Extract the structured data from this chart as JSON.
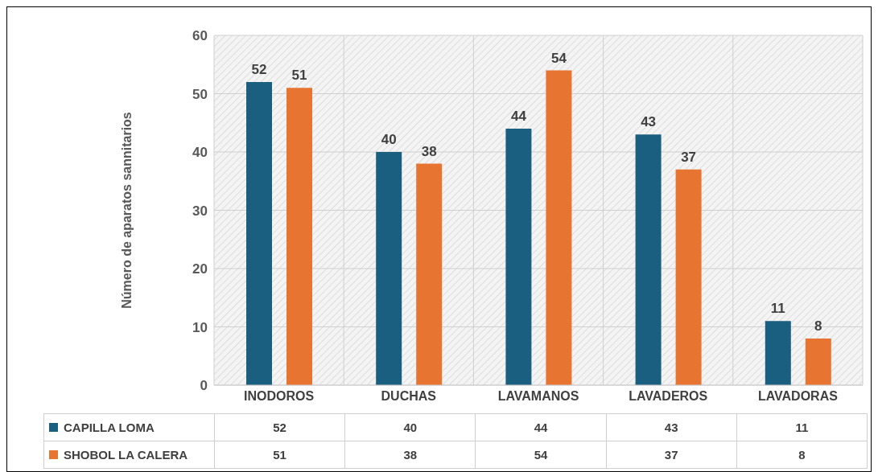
{
  "chart_data": {
    "type": "bar",
    "ylabel": "Número de aparatos sannitarios",
    "categories": [
      "INODOROS",
      "DUCHAS",
      "LAVAMANOS",
      "LAVADEROS",
      "LAVADORAS"
    ],
    "series": [
      {
        "name": "CAPILLA LOMA",
        "color": "#1a5e80",
        "values": [
          52,
          40,
          44,
          43,
          11
        ],
        "value_labels": [
          "52",
          "40",
          "44",
          "43",
          "11"
        ]
      },
      {
        "name": "SHOBOL LA CALERA",
        "color": "#e87432",
        "values": [
          51,
          38,
          54,
          37,
          8
        ],
        "value_labels": [
          "51",
          "38",
          "54",
          "37",
          "8"
        ]
      }
    ],
    "ylim": [
      0,
      60
    ],
    "yticks": [
      0,
      10,
      20,
      30,
      40,
      50,
      60
    ],
    "grid": true,
    "legend": "bottom",
    "data_labels": true,
    "annotations": [
      "52",
      "40",
      "44",
      "43",
      "11",
      "51",
      "38",
      "54",
      "37",
      "8"
    ]
  }
}
